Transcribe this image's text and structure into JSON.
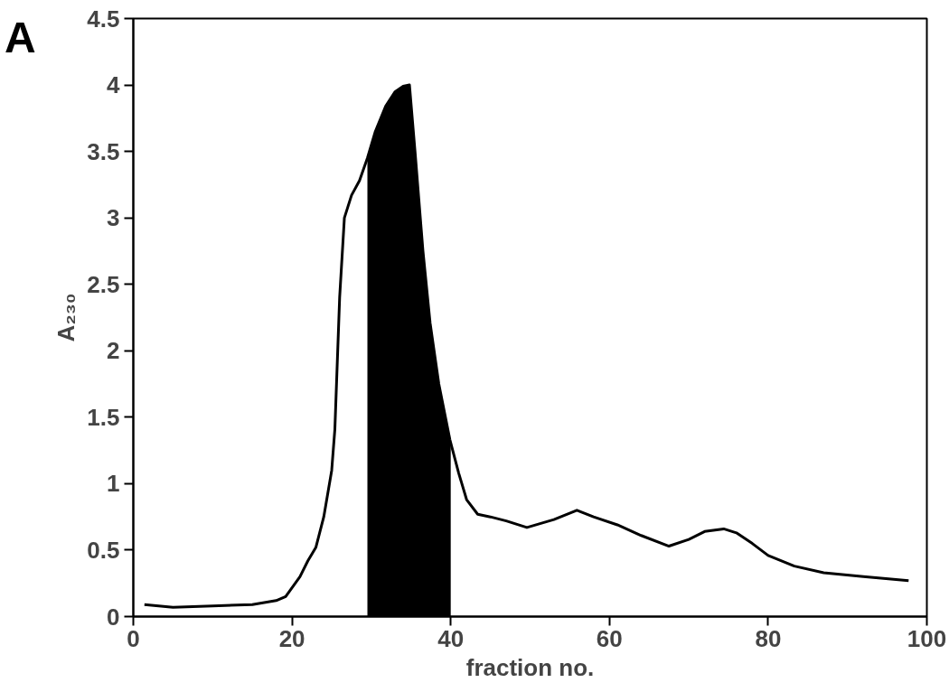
{
  "chart_data": {
    "type": "line",
    "xlabel": "fraction no.",
    "ylabel": "A₂₃₀",
    "annotations": [
      "A"
    ],
    "xlim": [
      0,
      100
    ],
    "ylim": [
      0,
      4.5
    ],
    "xticks": [
      0,
      20,
      40,
      60,
      80,
      100
    ],
    "yticks": [
      0,
      0.5,
      1,
      1.5,
      2,
      2.5,
      3,
      3.5,
      4,
      4.5
    ],
    "grid": false,
    "marker": "none",
    "line_style": "solid",
    "series": [
      {
        "type": "line",
        "color": "#000000",
        "x": [
          1.4,
          5,
          10,
          15,
          18,
          19.2,
          21,
          22,
          23,
          24,
          25,
          25.4,
          26,
          26.6,
          27.5,
          28.5,
          29.5,
          30.5,
          31.8,
          33,
          34,
          34.8,
          35.5,
          36.5,
          37.4,
          38.5,
          39.9,
          41,
          42,
          43.4,
          45,
          47,
          49.6,
          53,
          55.9,
          58,
          61,
          64,
          67.5,
          70,
          72,
          74.4,
          76,
          78,
          80,
          83.3,
          87,
          92,
          97.7
        ],
        "values": [
          0.09,
          0.07,
          0.08,
          0.09,
          0.12,
          0.15,
          0.3,
          0.42,
          0.52,
          0.75,
          1.1,
          1.41,
          2.4,
          3.0,
          3.17,
          3.28,
          3.45,
          3.65,
          3.84,
          3.95,
          3.99,
          4.0,
          3.5,
          2.75,
          2.21,
          1.75,
          1.33,
          1.08,
          0.88,
          0.77,
          0.75,
          0.72,
          0.67,
          0.73,
          0.8,
          0.75,
          0.69,
          0.61,
          0.53,
          0.58,
          0.64,
          0.66,
          0.63,
          0.55,
          0.46,
          0.38,
          0.33,
          0.3,
          0.27
        ]
      },
      {
        "type": "area",
        "color": "#000000",
        "x": [
          29.5,
          30.5,
          31.8,
          33,
          34,
          34.8,
          35.5,
          36.5,
          37.4,
          38.5,
          39.9,
          40
        ],
        "values": [
          3.45,
          3.65,
          3.84,
          3.95,
          3.99,
          4.0,
          3.5,
          2.75,
          2.21,
          1.75,
          1.33,
          1.3
        ]
      }
    ]
  }
}
